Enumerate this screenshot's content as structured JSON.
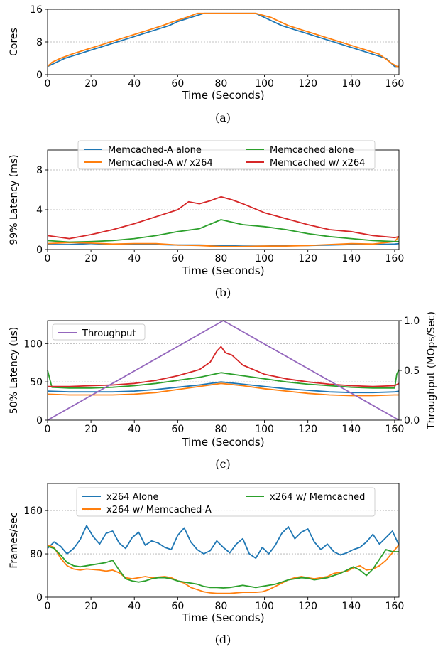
{
  "chart_data": [
    {
      "type": "line",
      "caption": "(a)",
      "xlabel": "Time (Seconds)",
      "ylabel": "Cores",
      "xlim": [
        0,
        162
      ],
      "ylim": [
        0,
        16
      ],
      "xticks": [
        0,
        20,
        40,
        60,
        80,
        100,
        120,
        140,
        160
      ],
      "yticks": [
        0,
        8,
        16
      ],
      "grid": "horizontal dotted",
      "series": [
        {
          "color": "#1f77b4",
          "x": [
            0,
            4,
            8,
            14,
            20,
            26,
            32,
            38,
            44,
            50,
            56,
            60,
            66,
            72,
            78,
            84,
            90,
            96,
            100,
            104,
            108,
            114,
            120,
            126,
            132,
            138,
            144,
            150,
            156,
            160,
            162
          ],
          "y": [
            2,
            3,
            4,
            5,
            6,
            7,
            8,
            9,
            10,
            11,
            12,
            13,
            14,
            15,
            15,
            15,
            15,
            15,
            14,
            13,
            12,
            11,
            10,
            9,
            8,
            7,
            6,
            5,
            4,
            2,
            2
          ]
        },
        {
          "color": "#ff7f0e",
          "x": [
            0,
            2,
            6,
            11,
            17,
            23,
            29,
            35,
            41,
            47,
            53,
            58,
            64,
            69,
            75,
            84,
            90,
            96,
            103,
            107,
            111,
            117,
            123,
            129,
            135,
            141,
            147,
            153,
            158,
            161,
            162
          ],
          "y": [
            2,
            3,
            4,
            5,
            6,
            7,
            8,
            9,
            10,
            11,
            12,
            13,
            14,
            15,
            15,
            15,
            15,
            15,
            14,
            13,
            12,
            11,
            10,
            9,
            8,
            7,
            6,
            5,
            3,
            2,
            2
          ]
        }
      ]
    },
    {
      "type": "line",
      "caption": "(b)",
      "xlabel": "Time (Seconds)",
      "ylabel": "99% Latency (ms)",
      "xlim": [
        0,
        162
      ],
      "ylim": [
        0,
        10
      ],
      "xticks": [
        0,
        20,
        40,
        60,
        80,
        100,
        120,
        140,
        160
      ],
      "yticks": [
        0,
        4,
        8
      ],
      "grid": "horizontal dotted",
      "legend": "top-center",
      "series": [
        {
          "name": "Memcached-A alone",
          "color": "#1f77b4",
          "x": [
            0,
            10,
            20,
            30,
            40,
            50,
            60,
            70,
            80,
            90,
            100,
            110,
            120,
            130,
            140,
            150,
            160,
            162
          ],
          "y": [
            0.5,
            0.5,
            0.6,
            0.5,
            0.5,
            0.5,
            0.45,
            0.45,
            0.4,
            0.35,
            0.35,
            0.4,
            0.4,
            0.45,
            0.5,
            0.5,
            0.55,
            0.6
          ]
        },
        {
          "name": "Memcached-A w/ x264",
          "color": "#ff7f0e",
          "x": [
            0,
            10,
            20,
            30,
            40,
            50,
            60,
            70,
            80,
            90,
            100,
            110,
            120,
            130,
            140,
            150,
            160,
            162
          ],
          "y": [
            0.6,
            0.7,
            0.65,
            0.55,
            0.6,
            0.6,
            0.45,
            0.4,
            0.3,
            0.3,
            0.35,
            0.35,
            0.4,
            0.5,
            0.6,
            0.55,
            0.8,
            1.3
          ]
        },
        {
          "name": "Memcached alone",
          "color": "#2ca02c",
          "x": [
            0,
            10,
            20,
            30,
            40,
            50,
            60,
            70,
            80,
            90,
            100,
            110,
            120,
            130,
            140,
            150,
            160,
            162
          ],
          "y": [
            0.9,
            0.75,
            0.8,
            0.9,
            1.1,
            1.4,
            1.8,
            2.1,
            3.0,
            2.5,
            2.3,
            2.0,
            1.6,
            1.3,
            1.1,
            0.9,
            0.8,
            0.8
          ]
        },
        {
          "name": "Memcached w/ x264",
          "color": "#d62728",
          "x": [
            0,
            10,
            20,
            30,
            40,
            50,
            60,
            65,
            70,
            75,
            80,
            85,
            90,
            100,
            110,
            120,
            130,
            140,
            150,
            160,
            162
          ],
          "y": [
            1.4,
            1.1,
            1.5,
            2.0,
            2.6,
            3.3,
            4.0,
            4.8,
            4.6,
            4.9,
            5.3,
            5.0,
            4.6,
            3.7,
            3.1,
            2.5,
            2.0,
            1.8,
            1.4,
            1.2,
            1.3
          ]
        }
      ]
    },
    {
      "type": "line",
      "caption": "(c)",
      "xlabel": "Time (Seconds)",
      "ylabel": "50% Latency (us)",
      "y2label": "Throughput (MOps/Sec)",
      "xlim": [
        0,
        162
      ],
      "ylim": [
        0,
        130
      ],
      "y2lim": [
        0,
        1.0
      ],
      "xticks": [
        0,
        20,
        40,
        60,
        80,
        100,
        120,
        140,
        160
      ],
      "yticks": [
        0,
        50,
        100
      ],
      "y2ticks": [
        0.0,
        0.5,
        1.0
      ],
      "grid": "horizontal dotted",
      "legend": "top-left",
      "series": [
        {
          "color": "#1f77b4",
          "x": [
            0,
            10,
            20,
            30,
            40,
            50,
            60,
            70,
            80,
            90,
            100,
            110,
            120,
            130,
            140,
            150,
            160,
            162
          ],
          "y": [
            38,
            37,
            37,
            37,
            38,
            40,
            43,
            46,
            50,
            47,
            44,
            41,
            39,
            37,
            36,
            36,
            37,
            38
          ]
        },
        {
          "color": "#ff7f0e",
          "x": [
            0,
            10,
            20,
            30,
            40,
            50,
            60,
            70,
            80,
            90,
            100,
            110,
            120,
            130,
            140,
            150,
            160,
            162
          ],
          "y": [
            34,
            33,
            33,
            33,
            34,
            36,
            40,
            44,
            48,
            45,
            41,
            38,
            35,
            33,
            32,
            32,
            33,
            33
          ]
        },
        {
          "color": "#2ca02c",
          "x": [
            0,
            2,
            10,
            20,
            30,
            40,
            50,
            60,
            70,
            80,
            90,
            100,
            110,
            120,
            130,
            140,
            150,
            160,
            161,
            162
          ],
          "y": [
            65,
            43,
            42,
            42,
            43,
            45,
            48,
            52,
            56,
            62,
            58,
            54,
            50,
            47,
            45,
            43,
            42,
            42,
            60,
            66
          ]
        },
        {
          "color": "#d62728",
          "x": [
            0,
            10,
            20,
            30,
            40,
            50,
            60,
            70,
            75,
            78,
            80,
            82,
            85,
            90,
            100,
            110,
            120,
            130,
            140,
            150,
            160,
            162
          ],
          "y": [
            44,
            44,
            45,
            46,
            48,
            52,
            58,
            66,
            76,
            90,
            96,
            88,
            85,
            72,
            60,
            54,
            50,
            47,
            45,
            44,
            45,
            48
          ]
        },
        {
          "name": "Throughput",
          "color": "#9467bd",
          "axis": "right",
          "x": [
            0,
            81,
            162
          ],
          "y": [
            0.0,
            1.0,
            0.0
          ]
        }
      ]
    },
    {
      "type": "line",
      "caption": "(d)",
      "xlabel": "Time (Seconds)",
      "ylabel": "Frames/sec",
      "xlim": [
        0,
        162
      ],
      "ylim": [
        0,
        210
      ],
      "xticks": [
        0,
        20,
        40,
        60,
        80,
        100,
        120,
        140,
        160
      ],
      "yticks": [
        0,
        80,
        160
      ],
      "grid": "horizontal dotted",
      "legend": "top-center",
      "series": [
        {
          "name": "x264 Alone",
          "color": "#1f77b4",
          "x": [
            0,
            3,
            6,
            9,
            12,
            15,
            18,
            21,
            24,
            27,
            30,
            33,
            36,
            39,
            42,
            45,
            48,
            51,
            54,
            57,
            60,
            63,
            66,
            69,
            72,
            75,
            78,
            81,
            84,
            87,
            90,
            93,
            96,
            99,
            102,
            105,
            108,
            111,
            114,
            117,
            120,
            123,
            126,
            129,
            132,
            135,
            138,
            141,
            144,
            147,
            150,
            153,
            156,
            159,
            162
          ],
          "y": [
            90,
            102,
            94,
            80,
            90,
            106,
            132,
            112,
            98,
            118,
            122,
            100,
            90,
            110,
            120,
            96,
            104,
            100,
            92,
            88,
            114,
            128,
            102,
            88,
            80,
            86,
            104,
            92,
            82,
            98,
            108,
            80,
            72,
            92,
            80,
            96,
            118,
            130,
            108,
            120,
            126,
            102,
            88,
            98,
            84,
            78,
            82,
            88,
            92,
            102,
            116,
            98,
            110,
            122,
            96
          ]
        },
        {
          "name": "x264 w/ Memcached-A",
          "color": "#ff7f0e",
          "x": [
            0,
            3,
            6,
            9,
            12,
            15,
            18,
            21,
            24,
            27,
            30,
            33,
            36,
            39,
            42,
            45,
            48,
            51,
            54,
            57,
            60,
            63,
            66,
            69,
            72,
            75,
            78,
            81,
            84,
            87,
            90,
            93,
            96,
            99,
            102,
            105,
            108,
            111,
            114,
            117,
            120,
            123,
            126,
            129,
            132,
            135,
            138,
            141,
            144,
            147,
            150,
            153,
            156,
            159,
            162
          ],
          "y": [
            96,
            92,
            72,
            58,
            52,
            50,
            52,
            51,
            50,
            48,
            50,
            45,
            36,
            34,
            36,
            38,
            36,
            37,
            38,
            36,
            30,
            26,
            18,
            14,
            10,
            8,
            7,
            7,
            7,
            8,
            9,
            9,
            9,
            10,
            14,
            20,
            26,
            32,
            36,
            38,
            36,
            34,
            36,
            38,
            44,
            46,
            48,
            54,
            58,
            50,
            52,
            58,
            68,
            82,
            97
          ]
        },
        {
          "name": "x264 w/ Memcached",
          "color": "#2ca02c",
          "x": [
            0,
            3,
            6,
            9,
            12,
            15,
            18,
            21,
            24,
            27,
            30,
            33,
            36,
            39,
            42,
            45,
            48,
            51,
            54,
            57,
            60,
            63,
            66,
            69,
            72,
            75,
            78,
            81,
            84,
            87,
            90,
            93,
            96,
            99,
            102,
            105,
            108,
            111,
            114,
            117,
            120,
            123,
            126,
            129,
            132,
            135,
            138,
            141,
            144,
            147,
            150,
            153,
            156,
            159,
            162
          ],
          "y": [
            94,
            90,
            78,
            64,
            58,
            56,
            58,
            60,
            62,
            64,
            68,
            50,
            34,
            30,
            28,
            30,
            34,
            36,
            36,
            34,
            30,
            28,
            26,
            24,
            20,
            18,
            18,
            17,
            18,
            20,
            22,
            20,
            18,
            20,
            22,
            24,
            28,
            32,
            34,
            36,
            35,
            32,
            34,
            36,
            40,
            44,
            50,
            56,
            50,
            40,
            52,
            70,
            88,
            84,
            84
          ]
        }
      ]
    }
  ]
}
